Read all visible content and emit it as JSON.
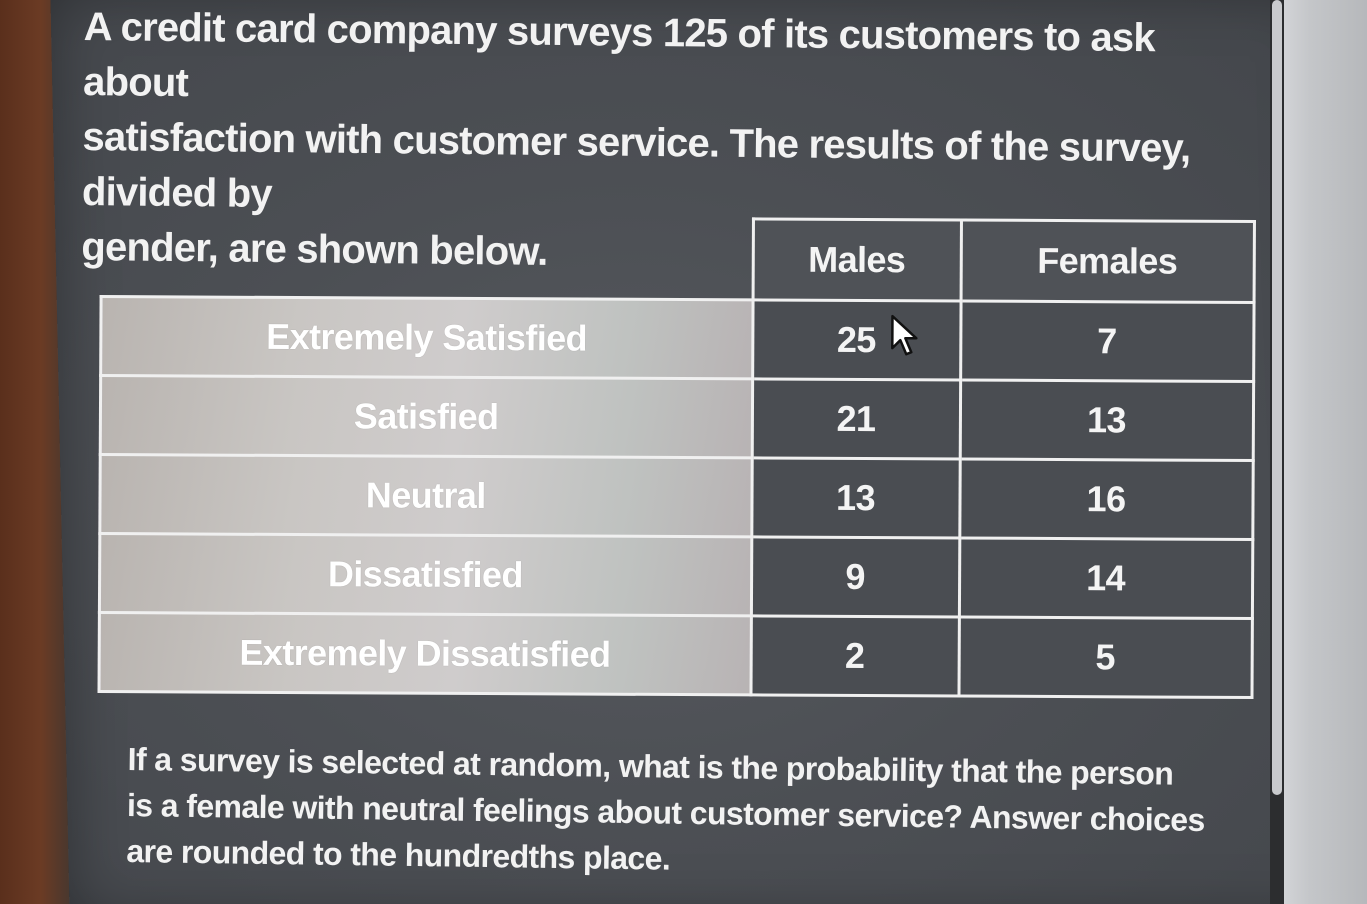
{
  "intro": {
    "line1": "A credit card company surveys 125 of its customers to ask about",
    "line2": "satisfaction with customer service. The results of the survey, divided by",
    "line3": "gender, are shown below."
  },
  "table": {
    "columns": [
      "Males",
      "Females"
    ],
    "rows": [
      {
        "label": "Extremely Satisfied",
        "males": "25",
        "females": "7"
      },
      {
        "label": "Satisfied",
        "males": "21",
        "females": "13"
      },
      {
        "label": "Neutral",
        "males": "13",
        "females": "16"
      },
      {
        "label": "Dissatisfied",
        "males": "9",
        "females": "14"
      },
      {
        "label": "Extremely Dissatisfied",
        "males": "2",
        "females": "5"
      }
    ]
  },
  "question": {
    "line1": "If a survey is selected at random, what is the probability that the person",
    "line2": "is a female with neutral feelings about customer service? Answer choices",
    "line3": "are rounded to the hundredths place."
  },
  "icons": {
    "cursor": "mouse-pointer-icon"
  }
}
